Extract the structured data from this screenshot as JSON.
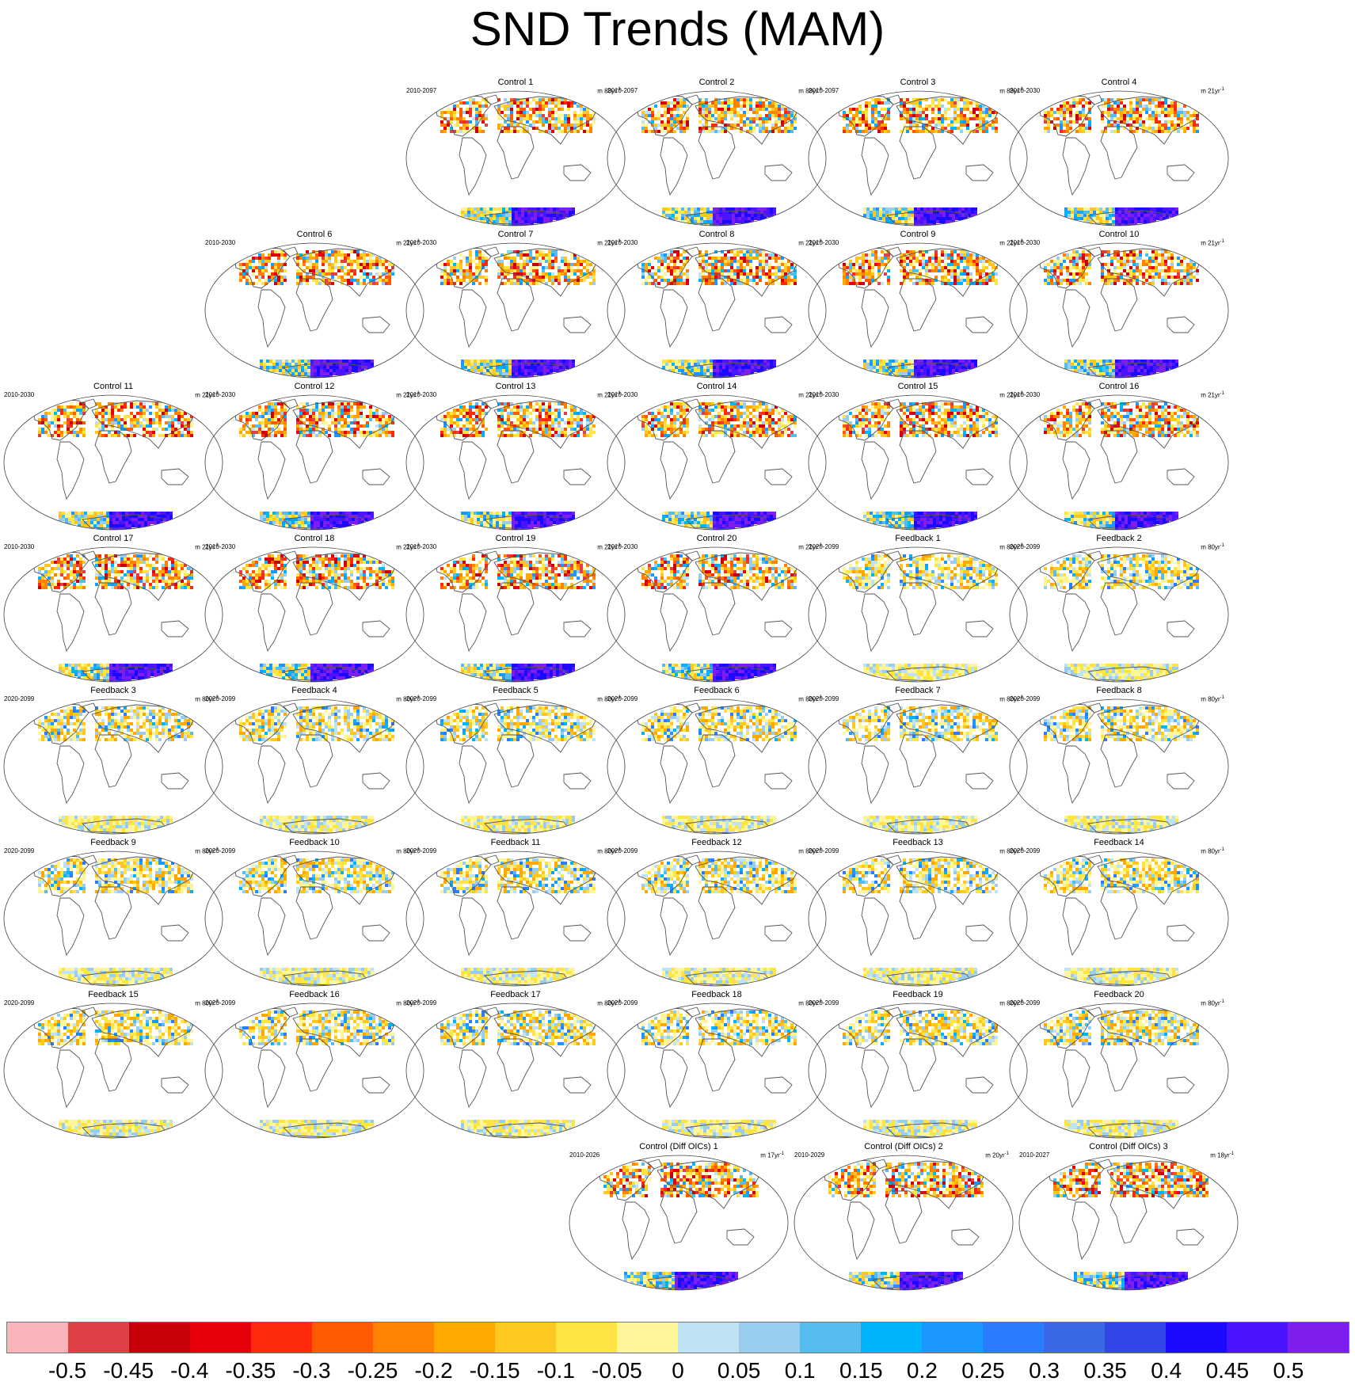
{
  "title": "SND Trends (MAM)",
  "units_prefix": "m ",
  "units_suffix": "yr",
  "units_exp": "-1",
  "panels": [
    {
      "title": "Control 1",
      "period": "2010-2097",
      "scale": "88",
      "kind": "control"
    },
    {
      "title": "Control 2",
      "period": "2010-2097",
      "scale": "88",
      "kind": "control"
    },
    {
      "title": "Control 3",
      "period": "2010-2097",
      "scale": "88",
      "kind": "control"
    },
    {
      "title": "Control 4",
      "period": "2010-2030",
      "scale": "21",
      "kind": "control"
    },
    {
      "title": "Control 6",
      "period": "2010-2030",
      "scale": "21",
      "kind": "control"
    },
    {
      "title": "Control 7",
      "period": "2010-2030",
      "scale": "21",
      "kind": "control"
    },
    {
      "title": "Control 8",
      "period": "2010-2030",
      "scale": "21",
      "kind": "control"
    },
    {
      "title": "Control 9",
      "period": "2010-2030",
      "scale": "21",
      "kind": "control"
    },
    {
      "title": "Control 10",
      "period": "2010-2030",
      "scale": "21",
      "kind": "control"
    },
    {
      "title": "Control 11",
      "period": "2010-2030",
      "scale": "21",
      "kind": "control"
    },
    {
      "title": "Control 12",
      "period": "2010-2030",
      "scale": "21",
      "kind": "control"
    },
    {
      "title": "Control 13",
      "period": "2010-2030",
      "scale": "21",
      "kind": "control"
    },
    {
      "title": "Control 14",
      "period": "2010-2030",
      "scale": "21",
      "kind": "control"
    },
    {
      "title": "Control 15",
      "period": "2010-2030",
      "scale": "21",
      "kind": "control"
    },
    {
      "title": "Control 16",
      "period": "2010-2030",
      "scale": "21",
      "kind": "control"
    },
    {
      "title": "Control 17",
      "period": "2010-2030",
      "scale": "21",
      "kind": "control"
    },
    {
      "title": "Control 18",
      "period": "2010-2030",
      "scale": "21",
      "kind": "control"
    },
    {
      "title": "Control 19",
      "period": "2010-2030",
      "scale": "21",
      "kind": "control"
    },
    {
      "title": "Control 20",
      "period": "2010-2030",
      "scale": "21",
      "kind": "control"
    },
    {
      "title": "Feedback 1",
      "period": "2020-2099",
      "scale": "80",
      "kind": "feedback"
    },
    {
      "title": "Feedback 2",
      "period": "2020-2099",
      "scale": "80",
      "kind": "feedback"
    },
    {
      "title": "Feedback 3",
      "period": "2020-2099",
      "scale": "80",
      "kind": "feedback"
    },
    {
      "title": "Feedback 4",
      "period": "2020-2099",
      "scale": "80",
      "kind": "feedback"
    },
    {
      "title": "Feedback 5",
      "period": "2020-2099",
      "scale": "80",
      "kind": "feedback"
    },
    {
      "title": "Feedback 6",
      "period": "2020-2099",
      "scale": "80",
      "kind": "feedback"
    },
    {
      "title": "Feedback 7",
      "period": "2020-2099",
      "scale": "80",
      "kind": "feedback"
    },
    {
      "title": "Feedback 8",
      "period": "2020-2099",
      "scale": "80",
      "kind": "feedback"
    },
    {
      "title": "Feedback 9",
      "period": "2020-2099",
      "scale": "80",
      "kind": "feedback"
    },
    {
      "title": "Feedback 10",
      "period": "2020-2099",
      "scale": "80",
      "kind": "feedback"
    },
    {
      "title": "Feedback 11",
      "period": "2020-2099",
      "scale": "80",
      "kind": "feedback"
    },
    {
      "title": "Feedback 12",
      "period": "2020-2099",
      "scale": "80",
      "kind": "feedback"
    },
    {
      "title": "Feedback 13",
      "period": "2020-2099",
      "scale": "80",
      "kind": "feedback"
    },
    {
      "title": "Feedback 14",
      "period": "2020-2099",
      "scale": "80",
      "kind": "feedback"
    },
    {
      "title": "Feedback 15",
      "period": "2020-2099",
      "scale": "80",
      "kind": "feedback"
    },
    {
      "title": "Feedback 16",
      "period": "2020-2099",
      "scale": "80",
      "kind": "feedback"
    },
    {
      "title": "Feedback 17",
      "period": "2020-2099",
      "scale": "80",
      "kind": "feedback"
    },
    {
      "title": "Feedback 18",
      "period": "2020-2099",
      "scale": "80",
      "kind": "feedback"
    },
    {
      "title": "Feedback 19",
      "period": "2020-2099",
      "scale": "80",
      "kind": "feedback"
    },
    {
      "title": "Feedback 20",
      "period": "2020-2099",
      "scale": "80",
      "kind": "feedback"
    },
    {
      "title": "Control (Diff OICs) 1",
      "period": "2010-2026",
      "scale": "17",
      "kind": "control"
    },
    {
      "title": "Control (Diff OICs) 2",
      "period": "2010-2029",
      "scale": "20",
      "kind": "control"
    },
    {
      "title": "Control (Diff OICs) 3",
      "period": "2010-2027",
      "scale": "18",
      "kind": "control"
    }
  ],
  "colorbar": {
    "colors": [
      "#fbb4b9",
      "#de4045",
      "#c8000a",
      "#e6000a",
      "#ff2a0a",
      "#ff5a00",
      "#ff8200",
      "#ffa800",
      "#ffc820",
      "#ffe446",
      "#fff59a",
      "#bee3f4",
      "#98cdee",
      "#55bdee",
      "#00b4fa",
      "#1a98ff",
      "#2a7cff",
      "#3a68e6",
      "#3046e6",
      "#1c0aff",
      "#4a14ff",
      "#7d1eef"
    ],
    "labels": [
      "-0.5",
      "-0.45",
      "-0.4",
      "-0.35",
      "-0.3",
      "-0.25",
      "-0.2",
      "-0.15",
      "-0.1",
      "-0.05",
      "0",
      "0.05",
      "0.1",
      "0.15",
      "0.2",
      "0.25",
      "0.3",
      "0.35",
      "0.4",
      "0.45",
      "0.5"
    ]
  }
}
